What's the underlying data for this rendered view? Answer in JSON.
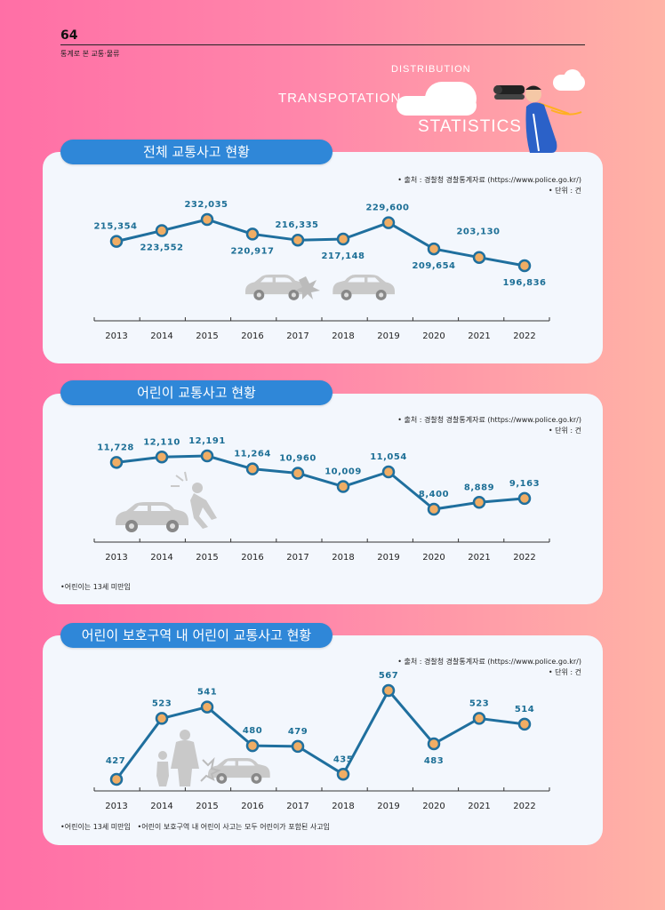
{
  "header": {
    "page_number": "64",
    "subtitle": "통계로 본 교통·물류",
    "word_distribution": "DISTRIBUTION",
    "word_transportation": "TRANSPOTATION",
    "word_statistics": "STATISTICS"
  },
  "colors": {
    "line": "#1f6f9e",
    "marker_fill": "#f0ad64",
    "title_bar": "#2f87d8",
    "card": "#f3f7fd"
  },
  "illustrations": [
    "binoculars-person-icon",
    "car-crash-icon",
    "child-hit-by-car-icon",
    "adult-child-car-icon"
  ],
  "chart_data": [
    {
      "type": "line",
      "title": "전체 교통사고 현황",
      "source": "• 출처 : 경찰청 경찰통계자료 (https://www.police.go.kr/)",
      "unit": "• 단위 : 건",
      "categories": [
        "2013",
        "2014",
        "2015",
        "2016",
        "2017",
        "2018",
        "2019",
        "2020",
        "2021",
        "2022"
      ],
      "values": [
        215354,
        223552,
        232035,
        220917,
        216335,
        217148,
        229600,
        209654,
        203130,
        196836
      ],
      "data_labels": [
        "215,354",
        "223,552",
        "232,035",
        "220,917",
        "216,335",
        "217,148",
        "229,600",
        "209,654",
        "203,130",
        "196,836"
      ],
      "ylim": [
        190000,
        240000
      ],
      "grid": false,
      "note": ""
    },
    {
      "type": "line",
      "title": "어린이 교통사고 현황",
      "source": "• 출처 : 경찰청 경찰통계자료 (https://www.police.go.kr/)",
      "unit": "• 단위 : 건",
      "categories": [
        "2013",
        "2014",
        "2015",
        "2016",
        "2017",
        "2018",
        "2019",
        "2020",
        "2021",
        "2022"
      ],
      "values": [
        11728,
        12110,
        12191,
        11264,
        10960,
        10009,
        11054,
        8400,
        8889,
        9163
      ],
      "data_labels": [
        "11,728",
        "12,110",
        "12,191",
        "11,264",
        "10,960",
        "10,009",
        "11,054",
        "8,400",
        "8,889",
        "9,163"
      ],
      "ylim": [
        7500,
        13000
      ],
      "grid": false,
      "note": "•어린이는 13세 미만임"
    },
    {
      "type": "line",
      "title": "어린이 보호구역 내 어린이 교통사고 현황",
      "source": "• 출처 : 경찰청 경찰통계자료 (https://www.police.go.kr/)",
      "unit": "• 단위 : 건",
      "categories": [
        "2013",
        "2014",
        "2015",
        "2016",
        "2017",
        "2018",
        "2019",
        "2020",
        "2021",
        "2022"
      ],
      "values": [
        427,
        523,
        541,
        480,
        479,
        435,
        567,
        483,
        523,
        514
      ],
      "data_labels": [
        "427",
        "523",
        "541",
        "480",
        "479",
        "435",
        "567",
        "483",
        "523",
        "514"
      ],
      "ylim": [
        410,
        590
      ],
      "grid": false,
      "note": "•어린이는 13세 미만임   •어린이 보호구역 내 어린이 사고는 모두 어린이가 포함된 사고임"
    }
  ]
}
